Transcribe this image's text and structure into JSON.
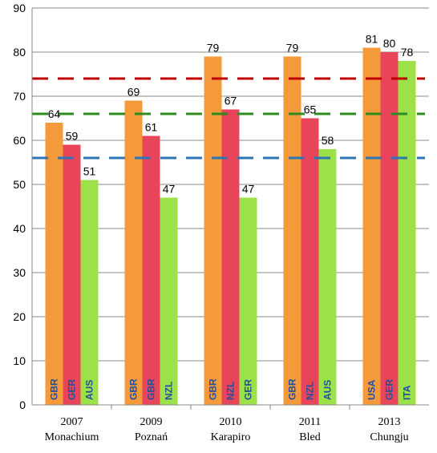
{
  "chart_data": {
    "type": "bar",
    "title": "",
    "xlabel": "",
    "ylabel": "",
    "ylim": [
      0,
      90
    ],
    "yticks": [
      0,
      10,
      20,
      30,
      40,
      50,
      60,
      70,
      80,
      90
    ],
    "grid": true,
    "categories": [
      {
        "year": "2007",
        "place": "Monachium"
      },
      {
        "year": "2009",
        "place": "Poznań"
      },
      {
        "year": "2010",
        "place": "Karapiro"
      },
      {
        "year": "2011",
        "place": "Bled"
      },
      {
        "year": "2013",
        "place": "Chungju"
      }
    ],
    "series": [
      {
        "values": [
          64,
          69,
          79,
          79,
          81
        ],
        "countries": [
          "GBR",
          "GBR",
          "GBR",
          "GBR",
          "USA"
        ]
      },
      {
        "values": [
          59,
          61,
          67,
          65,
          80
        ],
        "countries": [
          "GER",
          "GBR",
          "NZL",
          "NZL",
          "GER"
        ]
      },
      {
        "values": [
          51,
          47,
          47,
          58,
          78
        ],
        "countries": [
          "AUS",
          "NZL",
          "GER",
          "AUS",
          "ITA"
        ]
      }
    ],
    "reference_lines": [
      {
        "value": 74,
        "color": "#c00000"
      },
      {
        "value": 66,
        "color": "#2e8b22"
      },
      {
        "value": 56,
        "color": "#2e75b6"
      }
    ],
    "colors": {
      "series": [
        "#f59a3a",
        "#e8455a",
        "#9de14a"
      ],
      "country_text": "#1f4fa3",
      "grid": "#888888"
    }
  }
}
